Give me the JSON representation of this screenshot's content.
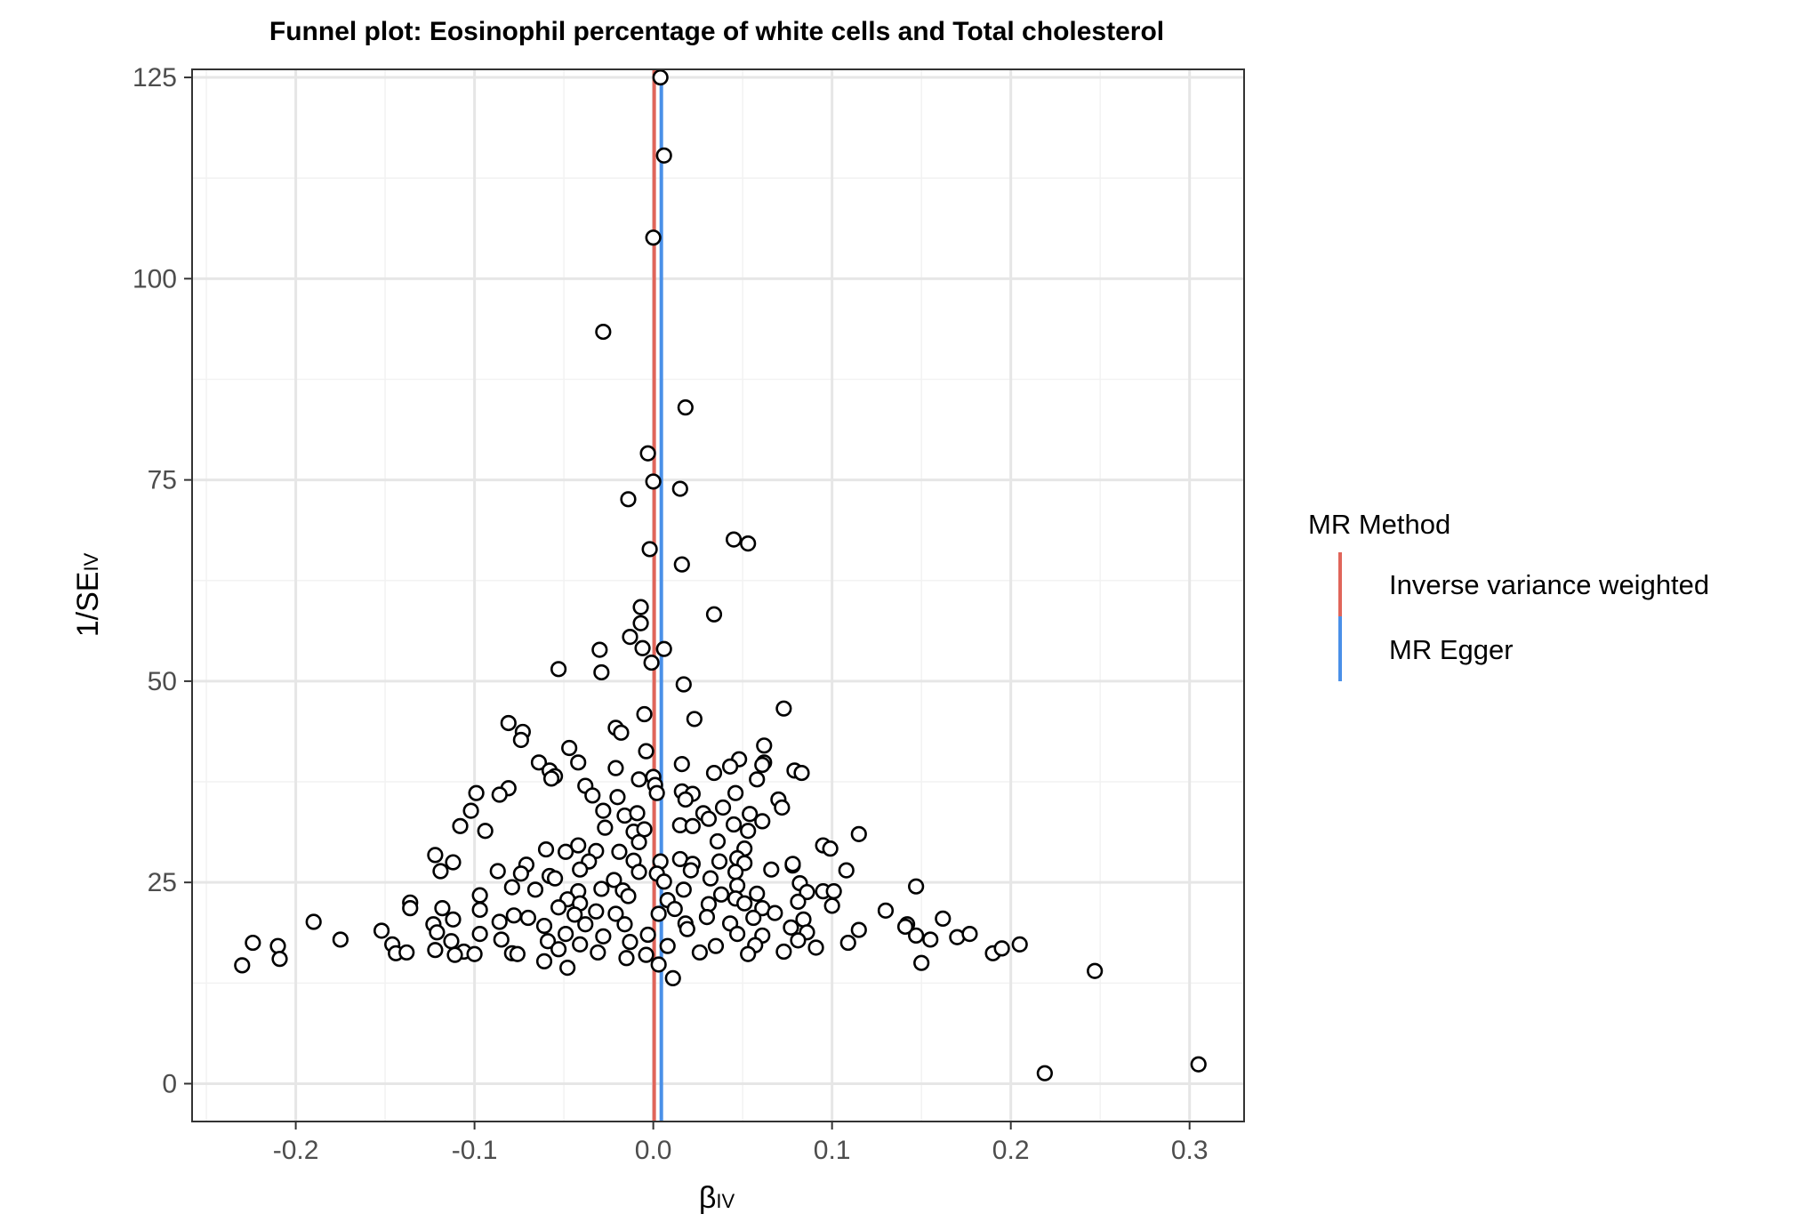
{
  "chart_data": {
    "type": "scatter",
    "title": "Funnel plot: Eosinophil percentage of white cells and Total cholesterol",
    "xlabel": "β",
    "xlabel_sub": "IV",
    "ylabel": "1/SE",
    "ylabel_sub": "IV",
    "xlim": [
      -0.258,
      0.3305
    ],
    "ylim": [
      -4.7,
      126.0
    ],
    "x_ticks": [
      -0.2,
      -0.1,
      0.0,
      0.1,
      0.2,
      0.3
    ],
    "x_tick_labels": [
      "-0.2",
      "-0.1",
      "0.0",
      "0.1",
      "0.2",
      "0.3"
    ],
    "y_ticks": [
      0,
      25,
      50,
      75,
      100,
      125
    ],
    "y_tick_labels": [
      "0",
      "25",
      "50",
      "75",
      "100",
      "125"
    ],
    "grid": true,
    "legend": {
      "title": "MR Method",
      "position": "right",
      "entries": [
        {
          "label": "Inverse variance weighted",
          "color": "#E0655A"
        },
        {
          "label": "MR Egger",
          "color": "#4A90E8"
        }
      ]
    },
    "vlines": [
      {
        "name": "Inverse variance weighted",
        "x": 0.0005,
        "color": "#E0655A"
      },
      {
        "name": "MR Egger",
        "x": 0.0045,
        "color": "#4A90E8"
      }
    ],
    "points": [
      [
        0.004,
        125.0
      ],
      [
        0.006,
        115.3
      ],
      [
        0.0,
        105.1
      ],
      [
        -0.028,
        93.4
      ],
      [
        0.018,
        84.0
      ],
      [
        -0.003,
        78.3
      ],
      [
        0.0,
        74.8
      ],
      [
        0.015,
        73.9
      ],
      [
        -0.014,
        72.6
      ],
      [
        0.045,
        67.6
      ],
      [
        0.053,
        67.1
      ],
      [
        -0.002,
        66.4
      ],
      [
        0.016,
        64.5
      ],
      [
        -0.007,
        59.2
      ],
      [
        0.034,
        58.3
      ],
      [
        -0.007,
        57.2
      ],
      [
        -0.013,
        55.5
      ],
      [
        -0.03,
        53.9
      ],
      [
        -0.006,
        54.1
      ],
      [
        0.006,
        54.0
      ],
      [
        -0.001,
        52.3
      ],
      [
        -0.053,
        51.5
      ],
      [
        -0.029,
        51.1
      ],
      [
        0.017,
        49.6
      ],
      [
        0.073,
        46.6
      ],
      [
        -0.005,
        45.9
      ],
      [
        0.023,
        45.3
      ],
      [
        -0.081,
        44.8
      ],
      [
        -0.073,
        43.7
      ],
      [
        -0.021,
        44.2
      ],
      [
        -0.018,
        43.6
      ],
      [
        -0.074,
        42.7
      ],
      [
        0.062,
        42.0
      ],
      [
        -0.047,
        41.7
      ],
      [
        -0.004,
        41.3
      ],
      [
        0.048,
        40.3
      ],
      [
        0.062,
        39.9
      ],
      [
        0.043,
        39.4
      ],
      [
        0.061,
        39.6
      ],
      [
        -0.064,
        39.9
      ],
      [
        -0.042,
        39.9
      ],
      [
        -0.021,
        39.2
      ],
      [
        0.016,
        39.7
      ],
      [
        -0.058,
        38.9
      ],
      [
        0.034,
        38.6
      ],
      [
        0.079,
        38.9
      ],
      [
        0.083,
        38.6
      ],
      [
        -0.055,
        38.2
      ],
      [
        -0.057,
        37.9
      ],
      [
        0.058,
        37.8
      ],
      [
        0.0,
        38.1
      ],
      [
        -0.008,
        37.8
      ],
      [
        -0.038,
        37.0
      ],
      [
        0.001,
        37.1
      ],
      [
        0.002,
        36.1
      ],
      [
        -0.081,
        36.7
      ],
      [
        -0.086,
        35.9
      ],
      [
        -0.099,
        36.1
      ],
      [
        -0.034,
        35.8
      ],
      [
        0.016,
        36.3
      ],
      [
        0.022,
        36.0
      ],
      [
        0.046,
        36.1
      ],
      [
        0.07,
        35.3
      ],
      [
        -0.02,
        35.6
      ],
      [
        0.018,
        35.3
      ],
      [
        0.072,
        34.3
      ],
      [
        -0.102,
        33.9
      ],
      [
        -0.028,
        33.9
      ],
      [
        0.039,
        34.3
      ],
      [
        0.028,
        33.6
      ],
      [
        0.054,
        33.5
      ],
      [
        -0.016,
        33.3
      ],
      [
        -0.009,
        33.6
      ],
      [
        0.031,
        32.9
      ],
      [
        0.061,
        32.6
      ],
      [
        0.045,
        32.2
      ],
      [
        -0.108,
        32.0
      ],
      [
        -0.094,
        31.4
      ],
      [
        -0.027,
        31.8
      ],
      [
        -0.011,
        31.3
      ],
      [
        -0.005,
        31.6
      ],
      [
        0.015,
        32.1
      ],
      [
        0.022,
        32.0
      ],
      [
        0.053,
        31.4
      ],
      [
        0.115,
        31.0
      ],
      [
        -0.008,
        30.0
      ],
      [
        0.036,
        30.1
      ],
      [
        0.095,
        29.6
      ],
      [
        -0.06,
        29.1
      ],
      [
        -0.042,
        29.6
      ],
      [
        0.051,
        29.2
      ],
      [
        0.099,
        29.2
      ],
      [
        -0.122,
        28.4
      ],
      [
        -0.049,
        28.8
      ],
      [
        -0.032,
        28.9
      ],
      [
        -0.019,
        28.8
      ],
      [
        -0.011,
        27.7
      ],
      [
        0.047,
        28.0
      ],
      [
        -0.112,
        27.5
      ],
      [
        -0.071,
        27.2
      ],
      [
        -0.036,
        27.6
      ],
      [
        0.004,
        27.6
      ],
      [
        0.015,
        27.9
      ],
      [
        0.022,
        27.3
      ],
      [
        0.037,
        27.6
      ],
      [
        0.051,
        27.4
      ],
      [
        0.078,
        27.1
      ],
      [
        0.078,
        27.3
      ],
      [
        -0.119,
        26.4
      ],
      [
        -0.074,
        26.1
      ],
      [
        -0.058,
        25.8
      ],
      [
        -0.041,
        26.6
      ],
      [
        -0.008,
        26.3
      ],
      [
        0.002,
        26.1
      ],
      [
        0.021,
        26.5
      ],
      [
        0.046,
        26.3
      ],
      [
        0.066,
        26.6
      ],
      [
        0.108,
        26.5
      ],
      [
        -0.087,
        26.4
      ],
      [
        -0.055,
        25.5
      ],
      [
        -0.022,
        25.3
      ],
      [
        0.032,
        25.5
      ],
      [
        0.006,
        25.1
      ],
      [
        0.082,
        24.9
      ],
      [
        -0.079,
        24.4
      ],
      [
        -0.066,
        24.1
      ],
      [
        -0.042,
        23.9
      ],
      [
        -0.029,
        24.2
      ],
      [
        -0.017,
        24.0
      ],
      [
        0.017,
        24.1
      ],
      [
        0.047,
        24.6
      ],
      [
        0.086,
        23.8
      ],
      [
        0.095,
        23.9
      ],
      [
        0.101,
        23.9
      ],
      [
        0.147,
        24.5
      ],
      [
        -0.097,
        23.4
      ],
      [
        -0.048,
        22.9
      ],
      [
        0.038,
        23.5
      ],
      [
        0.058,
        23.6
      ],
      [
        -0.041,
        22.4
      ],
      [
        -0.014,
        23.3
      ],
      [
        0.008,
        22.8
      ],
      [
        0.046,
        23.0
      ],
      [
        0.081,
        22.6
      ],
      [
        -0.136,
        22.5
      ],
      [
        -0.118,
        21.8
      ],
      [
        -0.097,
        21.6
      ],
      [
        -0.053,
        21.9
      ],
      [
        -0.032,
        21.4
      ],
      [
        0.012,
        21.7
      ],
      [
        0.031,
        22.3
      ],
      [
        0.051,
        22.4
      ],
      [
        0.061,
        21.8
      ],
      [
        0.1,
        22.1
      ],
      [
        0.13,
        21.5
      ],
      [
        -0.136,
        21.8
      ],
      [
        -0.078,
        20.9
      ],
      [
        -0.07,
        20.6
      ],
      [
        -0.044,
        21.0
      ],
      [
        -0.021,
        21.1
      ],
      [
        0.003,
        21.1
      ],
      [
        0.03,
        20.7
      ],
      [
        0.056,
        20.6
      ],
      [
        0.068,
        21.2
      ],
      [
        0.084,
        20.4
      ],
      [
        0.162,
        20.5
      ],
      [
        -0.19,
        20.1
      ],
      [
        -0.123,
        19.8
      ],
      [
        -0.112,
        20.4
      ],
      [
        -0.086,
        20.1
      ],
      [
        -0.061,
        19.6
      ],
      [
        -0.038,
        19.8
      ],
      [
        -0.016,
        19.8
      ],
      [
        0.018,
        19.9
      ],
      [
        0.043,
        19.9
      ],
      [
        0.077,
        19.4
      ],
      [
        0.142,
        19.8
      ],
      [
        -0.152,
        19.0
      ],
      [
        -0.121,
        18.8
      ],
      [
        -0.097,
        18.6
      ],
      [
        -0.049,
        18.6
      ],
      [
        -0.028,
        18.3
      ],
      [
        -0.003,
        18.5
      ],
      [
        0.019,
        19.2
      ],
      [
        0.047,
        18.6
      ],
      [
        0.061,
        18.4
      ],
      [
        0.086,
        18.8
      ],
      [
        0.115,
        19.1
      ],
      [
        0.141,
        19.5
      ],
      [
        0.147,
        18.4
      ],
      [
        0.17,
        18.2
      ],
      [
        0.177,
        18.6
      ],
      [
        -0.175,
        17.9
      ],
      [
        -0.113,
        17.7
      ],
      [
        -0.085,
        17.9
      ],
      [
        -0.059,
        17.7
      ],
      [
        -0.041,
        17.3
      ],
      [
        -0.013,
        17.6
      ],
      [
        0.008,
        17.1
      ],
      [
        0.035,
        17.1
      ],
      [
        0.057,
        17.2
      ],
      [
        0.081,
        17.8
      ],
      [
        0.109,
        17.5
      ],
      [
        0.155,
        17.9
      ],
      [
        -0.224,
        17.5
      ],
      [
        -0.21,
        17.1
      ],
      [
        -0.146,
        17.3
      ],
      [
        -0.122,
        16.6
      ],
      [
        -0.106,
        16.4
      ],
      [
        -0.079,
        16.2
      ],
      [
        -0.053,
        16.7
      ],
      [
        -0.031,
        16.3
      ],
      [
        -0.004,
        16.0
      ],
      [
        0.026,
        16.3
      ],
      [
        0.053,
        16.1
      ],
      [
        0.073,
        16.4
      ],
      [
        0.091,
        16.9
      ],
      [
        0.19,
        16.2
      ],
      [
        0.195,
        16.8
      ],
      [
        0.205,
        17.3
      ],
      [
        -0.144,
        16.2
      ],
      [
        -0.138,
        16.3
      ],
      [
        -0.111,
        16.0
      ],
      [
        -0.1,
        16.1
      ],
      [
        -0.076,
        16.1
      ],
      [
        -0.061,
        15.2
      ],
      [
        -0.015,
        15.6
      ],
      [
        0.003,
        14.8
      ],
      [
        0.15,
        15.0
      ],
      [
        -0.23,
        14.7
      ],
      [
        -0.209,
        15.5
      ],
      [
        -0.048,
        14.4
      ],
      [
        0.011,
        13.1
      ],
      [
        0.247,
        14.0
      ],
      [
        0.219,
        1.3
      ],
      [
        0.305,
        2.4
      ]
    ]
  }
}
